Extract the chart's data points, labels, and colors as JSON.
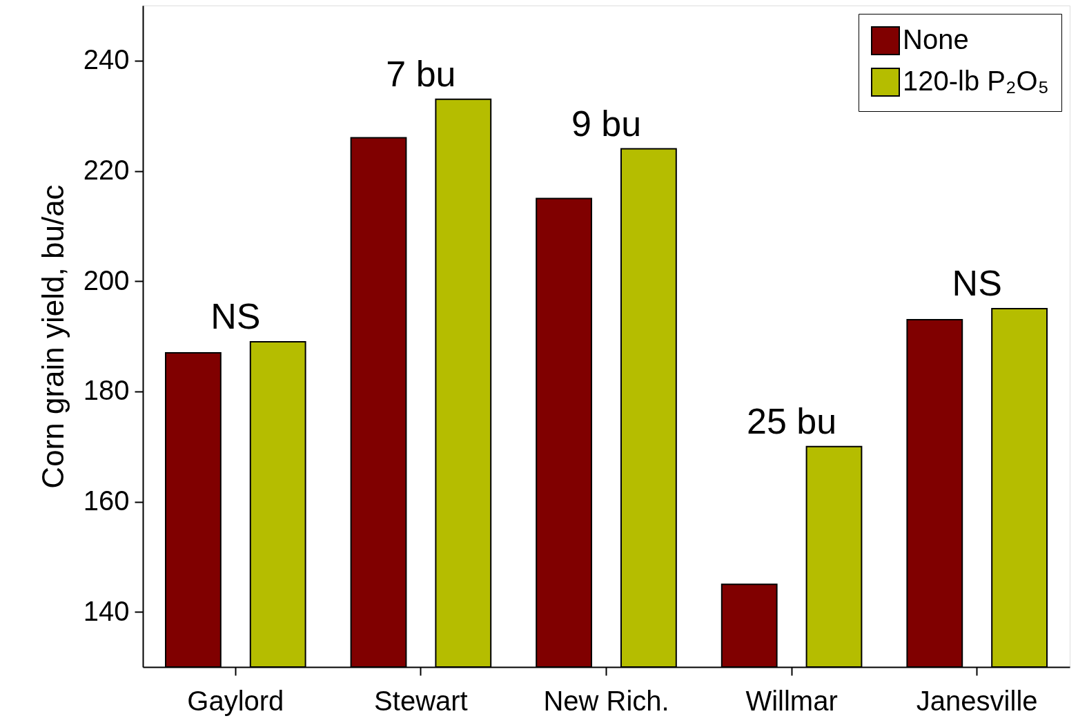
{
  "chart_data": {
    "type": "bar",
    "ylabel": "Corn grain yield, bu/ac",
    "categories": [
      "Gaylord",
      "Stewart",
      "New Rich.",
      "Willmar",
      "Janesville"
    ],
    "series": [
      {
        "name": "None",
        "color": "#800000",
        "values": [
          187,
          226,
          215,
          145,
          193
        ]
      },
      {
        "name": "120-lb P₂O₅",
        "color": "#b5bd00",
        "values": [
          189,
          233,
          224,
          170,
          195
        ]
      }
    ],
    "ylim": [
      130,
      250
    ],
    "yticks": [
      140,
      160,
      180,
      200,
      220,
      240
    ],
    "annotations": [
      "NS",
      "7 bu",
      "9 bu",
      "25 bu",
      "NS"
    ],
    "grid": false,
    "legend": "top right"
  }
}
